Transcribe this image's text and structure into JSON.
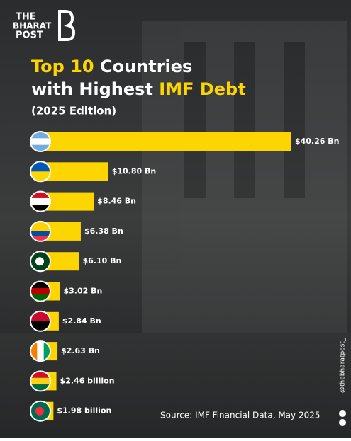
{
  "brand": [
    "THE",
    "BHARAT",
    "POST"
  ],
  "chart_data": {
    "type": "bar",
    "orientation": "horizontal",
    "title_lines": [
      [
        {
          "text": "Top 10",
          "highlight": true
        },
        {
          "text": " Countries",
          "highlight": false
        }
      ],
      [
        {
          "text": "with Highest ",
          "highlight": false
        },
        {
          "text": "IMF Debt",
          "highlight": true
        }
      ]
    ],
    "subtitle": "(2025 Edition)",
    "categories": [
      null,
      null,
      null,
      null,
      null,
      null,
      null,
      null,
      null,
      null
    ],
    "values": [
      40.26,
      10.8,
      8.46,
      6.38,
      6.1,
      3.02,
      2.84,
      2.63,
      2.46,
      1.98
    ],
    "value_labels": [
      "$40.26 Bn",
      "$10.80 Bn",
      "$8.46 Bn",
      "$6.38 Bn",
      "$6.10 Bn",
      "$3.02 Bn",
      "$2.84 Bn",
      "$2.63 Bn",
      "$2.46 billion",
      "$1.98 billion"
    ],
    "color": "#fdd500",
    "highlight_color": "#fdd500",
    "source": "Source: IMF Financial Data, May 2025"
  },
  "handle": "@thebharatpost_"
}
